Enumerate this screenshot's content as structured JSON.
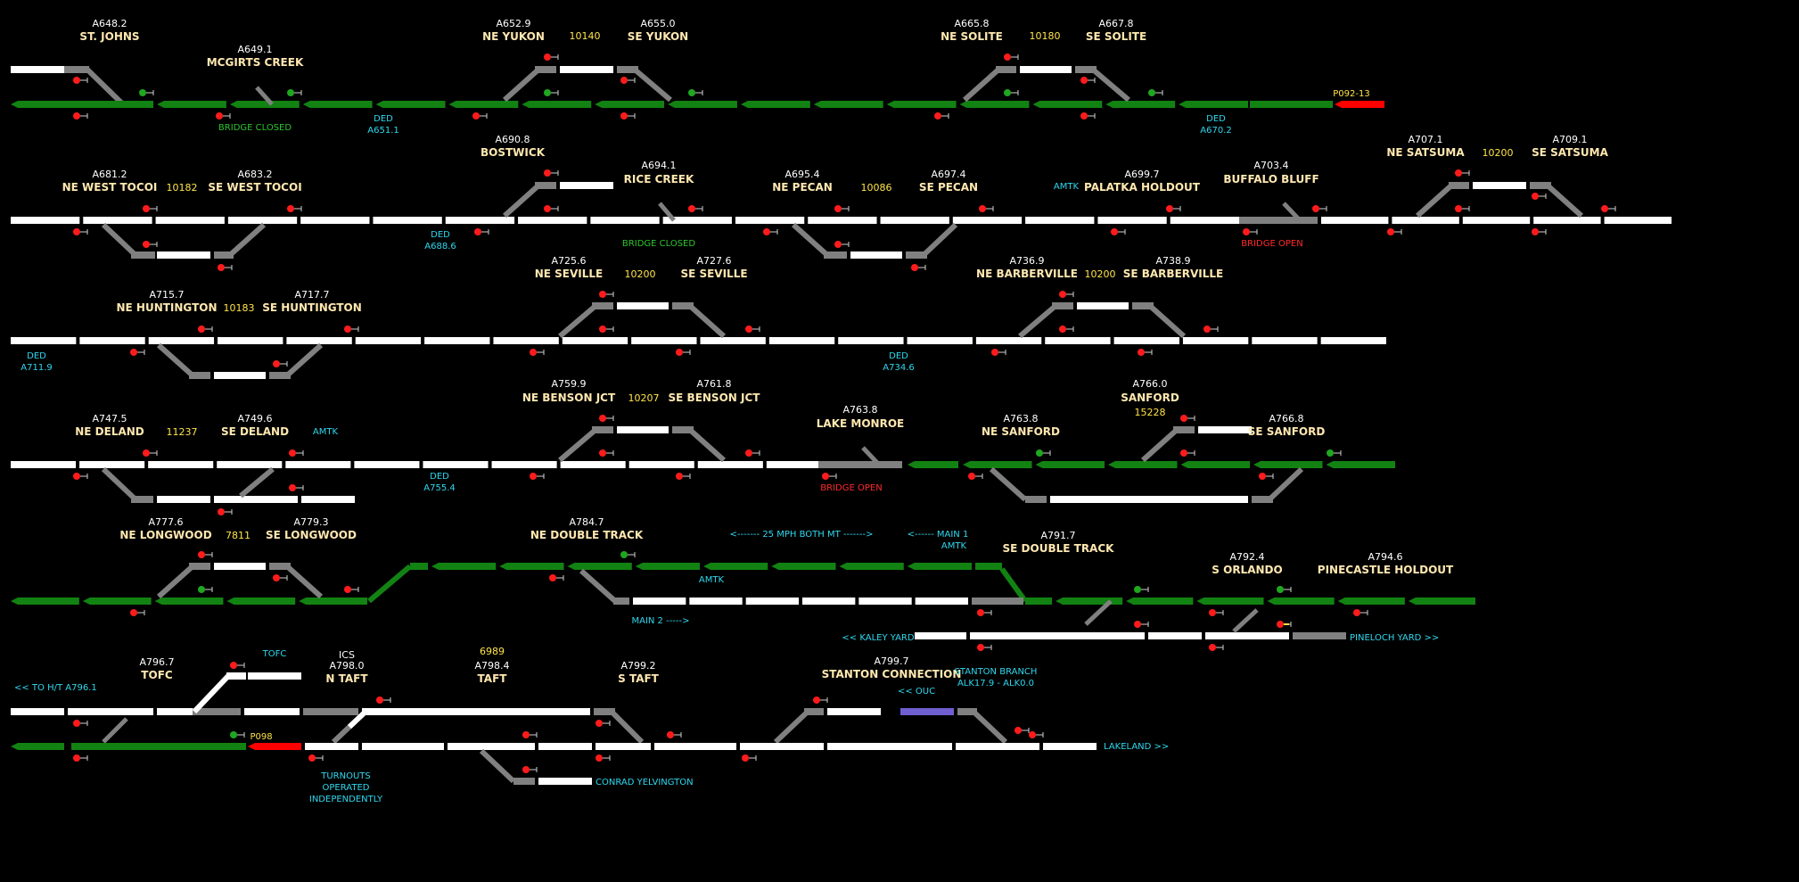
{
  "colors": {
    "track_white": "#ffffff",
    "track_gray": "#808080",
    "track_green": "#128212",
    "track_red": "#ff0000",
    "track_purple": "#6f5fd0",
    "signal_red": "#ff1b1b",
    "signal_green": "#1fa71f",
    "label_milepost": "#ffffff",
    "label_station": "#ffe8b0",
    "label_train": "#ffe44a",
    "label_info": "#2fd8ee"
  },
  "stations": [
    {
      "mp": "A648.2",
      "name": "ST. JOHNS"
    },
    {
      "mp": "A649.1",
      "name": "MCGIRTS CREEK"
    },
    {
      "mp": "A652.9",
      "name": "NE YUKON"
    },
    {
      "mp": "A655.0",
      "name": "SE YUKON"
    },
    {
      "mp": "A665.8",
      "name": "NE SOLITE"
    },
    {
      "mp": "A667.8",
      "name": "SE SOLITE"
    },
    {
      "mp": "A690.8",
      "name": "BOSTWICK"
    },
    {
      "mp": "A681.2",
      "name": "NE WEST TOCOI"
    },
    {
      "mp": "A683.2",
      "name": "SE WEST TOCOI"
    },
    {
      "mp": "A694.1",
      "name": "RICE CREEK"
    },
    {
      "mp": "A695.4",
      "name": "NE PECAN"
    },
    {
      "mp": "A697.4",
      "name": "SE PECAN"
    },
    {
      "mp": "A699.7",
      "name": "PALATKA HOLDOUT"
    },
    {
      "mp": "A703.4",
      "name": "BUFFALO BLUFF"
    },
    {
      "mp": "A707.1",
      "name": "NE SATSUMA"
    },
    {
      "mp": "A709.1",
      "name": "SE SATSUMA"
    },
    {
      "mp": "A715.7",
      "name": "NE HUNTINGTON"
    },
    {
      "mp": "A717.7",
      "name": "SE HUNTINGTON"
    },
    {
      "mp": "A725.6",
      "name": "NE SEVILLE"
    },
    {
      "mp": "A727.6",
      "name": "SE SEVILLE"
    },
    {
      "mp": "A736.9",
      "name": "NE BARBERVILLE"
    },
    {
      "mp": "A738.9",
      "name": "SE BARBERVILLE"
    },
    {
      "mp": "A747.5",
      "name": "NE DELAND"
    },
    {
      "mp": "A749.6",
      "name": "SE DELAND"
    },
    {
      "mp": "A759.9",
      "name": "NE BENSON JCT"
    },
    {
      "mp": "A761.8",
      "name": "SE BENSON JCT"
    },
    {
      "mp": "A763.8",
      "name": "LAKE MONROE"
    },
    {
      "mp": "A763.8",
      "name": "NE SANFORD"
    },
    {
      "mp": "A766.0",
      "name": "SANFORD"
    },
    {
      "mp": "A766.8",
      "name": "SE SANFORD"
    },
    {
      "mp": "A777.6",
      "name": "NE LONGWOOD"
    },
    {
      "mp": "A779.3",
      "name": "SE LONGWOOD"
    },
    {
      "mp": "A784.7",
      "name": "NE DOUBLE TRACK"
    },
    {
      "mp": "A791.7",
      "name": "SE DOUBLE TRACK"
    },
    {
      "mp": "A792.4",
      "name": "S ORLANDO"
    },
    {
      "mp": "A794.6",
      "name": "PINECASTLE HOLDOUT"
    },
    {
      "mp": "A796.7",
      "name": "TOFC"
    },
    {
      "mp": "A798.0",
      "name": "N TAFT",
      "prefix": "ICS"
    },
    {
      "mp": "A798.4",
      "name": "TAFT"
    },
    {
      "mp": "A799.2",
      "name": "S TAFT"
    },
    {
      "mp": "A799.7",
      "name": "STANTON CONNECTION"
    }
  ],
  "trains": [
    "10140",
    "10180",
    "10182",
    "10086",
    "10200",
    "10183",
    "10200",
    "10200",
    "11237",
    "10207",
    "15228",
    "7811",
    "6989"
  ],
  "block_labels": [
    "P092-13",
    "P098"
  ],
  "notes": {
    "bridge_closed_1": "BRIDGE CLOSED",
    "bridge_closed_2": "BRIDGE CLOSED",
    "bridge_open_1": "BRIDGE OPEN",
    "bridge_open_2": "BRIDGE OPEN",
    "ded": [
      "DED",
      "DED",
      "DED",
      "DED",
      "DED",
      "DED"
    ],
    "ded_mp": [
      "A651.1",
      "A670.2",
      "A688.6",
      "A711.9",
      "A734.6",
      "A755.4"
    ],
    "amtk": [
      "AMTK",
      "AMTK",
      "AMTK",
      "AMTK"
    ],
    "speed_restriction": "<------- 25 MPH BOTH MT ------->",
    "main1": "<------ MAIN 1",
    "main2": "MAIN 2 ----->",
    "kaley_yard": "<< KALEY YARD",
    "pineloch_yard": "PINELOCH YARD >>",
    "to_ht": "<< TO H/T A796.1",
    "tofc": "TOFC",
    "stanton_branch": "STANTON BRANCH",
    "stanton_branch_mp": "ALK17.9 - ALK0.0",
    "ouc": "<< OUC",
    "lakeland": "LAKELAND >>",
    "turnouts": [
      "TURNOUTS",
      "OPERATED",
      "INDEPENDENTLY"
    ],
    "conrad": "CONRAD YELVINGTON"
  }
}
